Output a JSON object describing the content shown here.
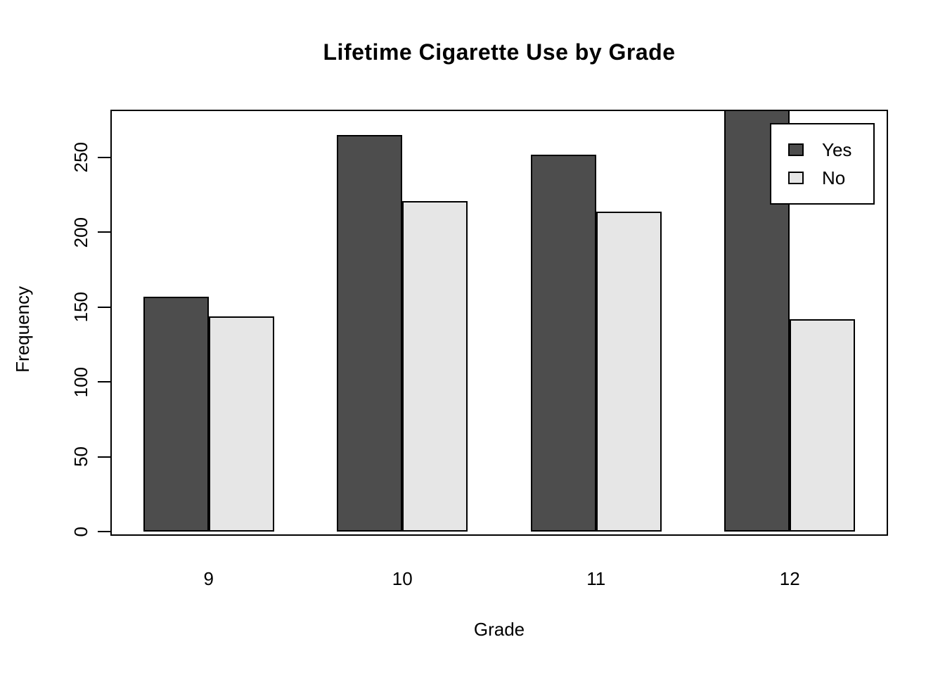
{
  "chart_data": {
    "type": "bar",
    "title": "Lifetime Cigarette Use by Grade",
    "xlabel": "Grade",
    "ylabel": "Frequency",
    "categories": [
      "9",
      "10",
      "11",
      "12"
    ],
    "series": [
      {
        "name": "Yes",
        "color": "#4D4D4D",
        "values": [
          157,
          265,
          252,
          281
        ],
        "clipped_at_plot_top": [
          false,
          false,
          false,
          true
        ]
      },
      {
        "name": "No",
        "color": "#E6E6E6",
        "values": [
          144,
          221,
          214,
          142
        ],
        "clipped_at_plot_top": [
          false,
          false,
          false,
          false
        ]
      }
    ],
    "ylim": [
      0,
      281
    ],
    "yticks": [
      0,
      50,
      100,
      150,
      200,
      250
    ],
    "grid": false,
    "legend_position": "top-right",
    "legend_labels": [
      "Yes",
      "No"
    ],
    "bar_border_color": "#000000",
    "plot_border_color": "#000000",
    "background_color": "#FFFFFF",
    "note": "Grade 12 'Yes' bar exceeds the y-axis range and is clipped at the top of the plot box (value is at least 281)."
  }
}
